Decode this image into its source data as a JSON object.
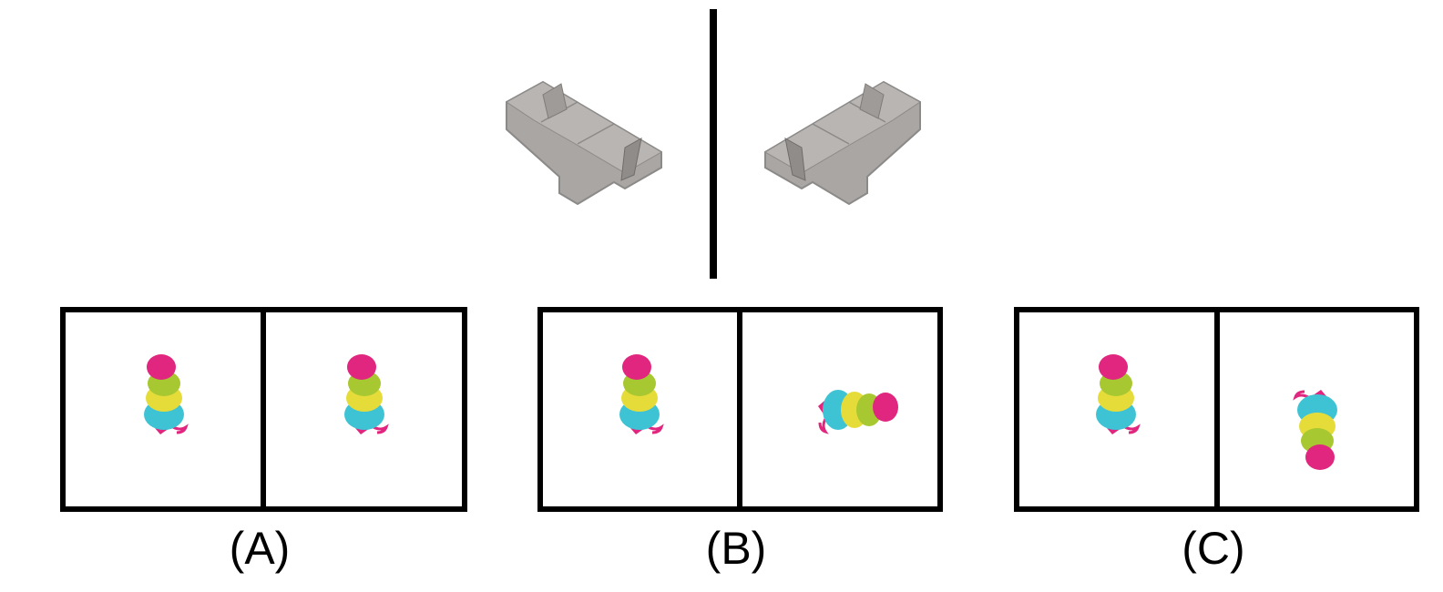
{
  "reference": {
    "left_object": "sofa-icon",
    "right_object": "sofa-icon",
    "divider": "vertical-line"
  },
  "options": [
    {
      "label": "(A)",
      "left_figure": "stacked-figure-icon",
      "right_figure": "stacked-figure-icon",
      "right_rotation_deg": 0
    },
    {
      "label": "(B)",
      "left_figure": "stacked-figure-icon",
      "right_figure": "stacked-figure-icon",
      "right_rotation_deg": 90
    },
    {
      "label": "(C)",
      "left_figure": "stacked-figure-icon",
      "right_figure": "stacked-figure-icon",
      "right_rotation_deg": 180
    }
  ],
  "colors": {
    "frame": "#000000",
    "sofa": "#a9a6a4",
    "head": "#e0267f",
    "green": "#a8c832",
    "yellow": "#e5dc3a",
    "cyan": "#3ec3d5"
  }
}
